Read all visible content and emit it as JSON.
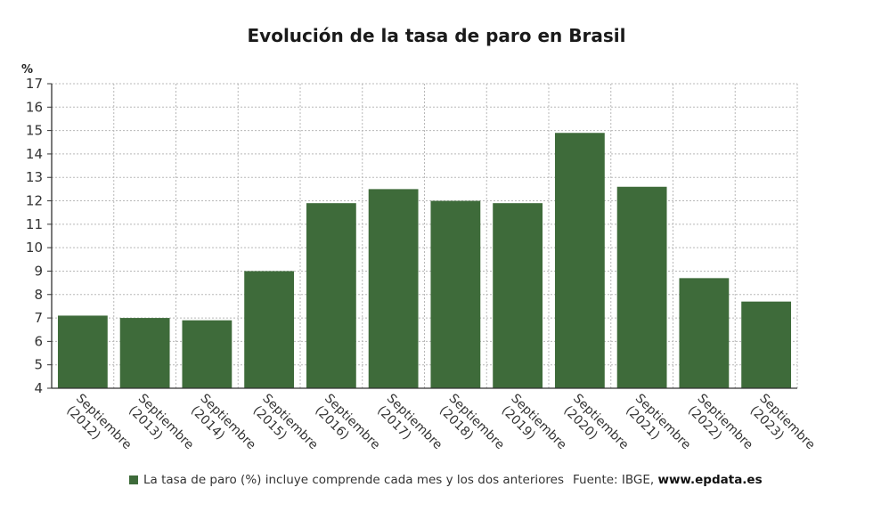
{
  "chart_data": {
    "type": "bar",
    "title": "Evolución de la tasa de paro en Brasil",
    "ylabel": "%",
    "ylim": [
      4,
      17
    ],
    "yticks": [
      4,
      5,
      6,
      7,
      8,
      9,
      10,
      11,
      12,
      13,
      14,
      15,
      16,
      17
    ],
    "grid": true,
    "categories": [
      [
        "Septiembre",
        "(2012)"
      ],
      [
        "Septiembre",
        "(2013)"
      ],
      [
        "Septiembre",
        "(2014)"
      ],
      [
        "Septiembre",
        "(2015)"
      ],
      [
        "Septiembre",
        "(2016)"
      ],
      [
        "Septiembre",
        "(2017)"
      ],
      [
        "Septiembre",
        "(2018)"
      ],
      [
        "Septiembre",
        "(2019)"
      ],
      [
        "Septiembre",
        "(2020)"
      ],
      [
        "Septiembre",
        "(2021)"
      ],
      [
        "Septiembre",
        "(2022)"
      ],
      [
        "Septiembre",
        "(2023)"
      ]
    ],
    "series": [
      {
        "name": "La tasa de paro (%) incluye comprende cada mes y los dos anteriores",
        "color": "#3e6b3a",
        "values": [
          7.1,
          7.0,
          6.9,
          9.0,
          11.9,
          12.5,
          12.0,
          11.9,
          14.9,
          12.6,
          8.7,
          7.7
        ]
      }
    ],
    "legend_position": "bottom-left"
  },
  "footer": {
    "legend_label": "La tasa de paro (%) incluye comprende cada mes y los dos anteriores",
    "source_prefix": "Fuente: IBGE, ",
    "source_site": "www.epdata.es"
  }
}
